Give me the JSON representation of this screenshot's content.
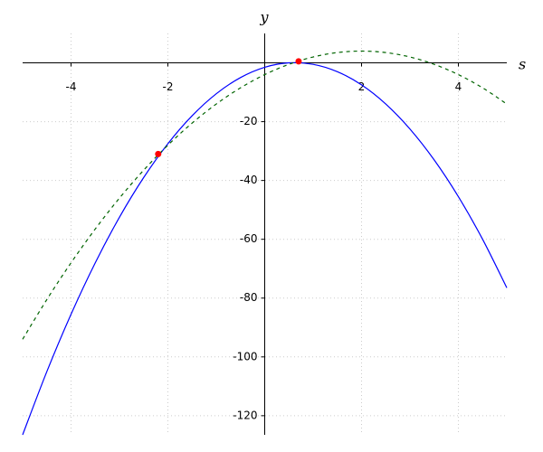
{
  "chart_data": {
    "type": "line",
    "x_label": "s",
    "y_label": "y",
    "x": [
      -5,
      -4.5,
      -4,
      -3.5,
      -3,
      -2.5,
      -2,
      -1.5,
      -1,
      -0.5,
      0,
      0.5,
      1,
      1.5,
      2,
      2.5,
      3,
      3.5,
      4,
      4.5,
      5
    ],
    "series": [
      {
        "color": "#0000ff",
        "dash": false,
        "values": [
          -126.5,
          -105,
          -85.5,
          -68,
          -52.5,
          -39,
          -27.5,
          -18,
          -10.5,
          -5,
          -1.5,
          0,
          -0.5,
          -3,
          -7.5,
          -14,
          -22.5,
          -33,
          -45.5,
          -60,
          -76.5
        ]
      },
      {
        "color": "#006400",
        "dash": true,
        "values": [
          -94,
          -80.5,
          -68,
          -56.5,
          -46,
          -36.5,
          -28,
          -20.5,
          -14,
          -8.5,
          -4,
          -0.5,
          2,
          3.5,
          4,
          3.5,
          2,
          -0.5,
          -4,
          -8.5,
          -14
        ]
      }
    ],
    "points": {
      "color": "#ff0000",
      "x": [
        -2.2,
        0.7
      ],
      "values": [
        -31,
        0.5
      ]
    },
    "xlim": [
      -5,
      5
    ],
    "ylim": [
      -126.5,
      10
    ],
    "xticks": [
      -4,
      -2,
      2,
      4
    ],
    "yticks": [
      -120,
      -100,
      -80,
      -60,
      -40,
      -20
    ],
    "grid": true
  }
}
